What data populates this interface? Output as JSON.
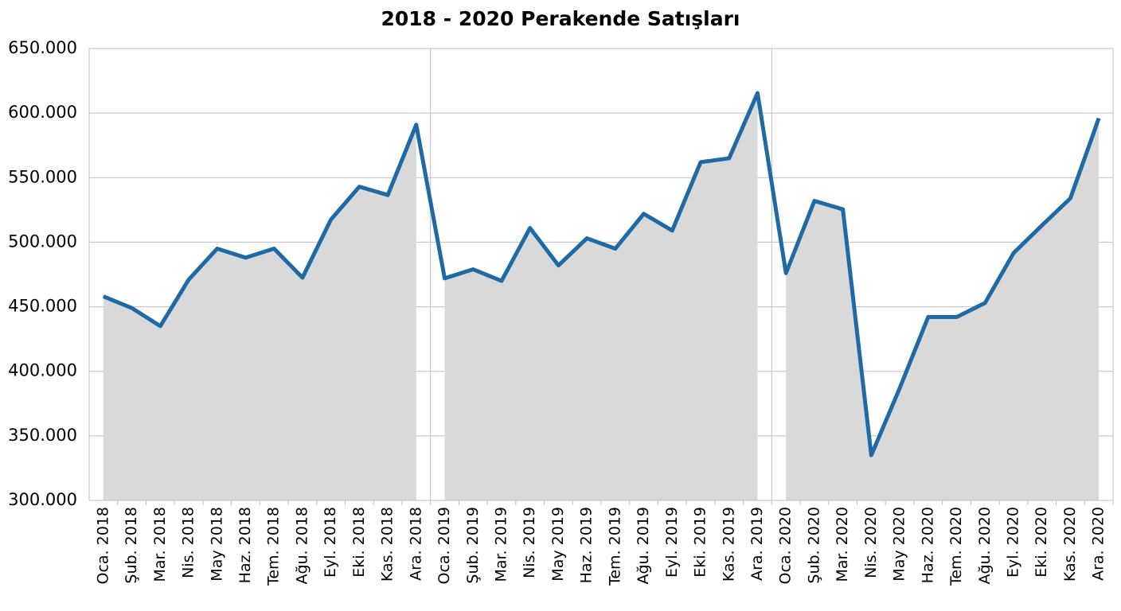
{
  "chart_data": {
    "type": "line",
    "title": "2018 - 2020 Perakende Satışları",
    "categories": [
      "Oca. 2018",
      "Şub. 2018",
      "Mar. 2018",
      "Nis. 2018",
      "May 2018",
      "Haz. 2018",
      "Tem. 2018",
      "Ağu. 2018",
      "Eyl. 2018",
      "Eki. 2018",
      "Kas. 2018",
      "Ara. 2018",
      "Oca. 2019",
      "Şub. 2019",
      "Mar. 2019",
      "Nis. 2019",
      "May 2019",
      "Haz. 2019",
      "Tem. 2019",
      "Ağu. 2019",
      "Eyl. 2019",
      "Eki. 2019",
      "Kas. 2019",
      "Ara. 2019",
      "Oca. 2020",
      "Şub. 2020",
      "Mar. 2020",
      "Nis. 2020",
      "May 2020",
      "Haz. 2020",
      "Tem. 2020",
      "Ağu. 2020",
      "Eyl. 2020",
      "Eki. 2020",
      "Kas. 2020",
      "Ara. 2020"
    ],
    "values": [
      458000,
      449000,
      435000,
      471000,
      495000,
      488000,
      495000,
      472500,
      517500,
      543000,
      536500,
      591000,
      472000,
      479000,
      470000,
      511000,
      482000,
      503000,
      495000,
      522000,
      509000,
      562000,
      565000,
      615500,
      476000,
      532000,
      525500,
      335000,
      387000,
      442000,
      442000,
      453000,
      491500,
      513000,
      534000,
      596000
    ],
    "color": "#1f6aa5",
    "area_color": "#d9d9d9",
    "ylim": [
      300000,
      650000
    ],
    "yticks": [
      {
        "value": 300000,
        "label": "300.000"
      },
      {
        "value": 350000,
        "label": "350.000"
      },
      {
        "value": 400000,
        "label": "400.000"
      },
      {
        "value": 450000,
        "label": "450.000"
      },
      {
        "value": 500000,
        "label": "500.000"
      },
      {
        "value": 550000,
        "label": "550.000"
      },
      {
        "value": 600000,
        "label": "600.000"
      },
      {
        "value": 650000,
        "label": "650.000"
      }
    ],
    "grid": true
  }
}
